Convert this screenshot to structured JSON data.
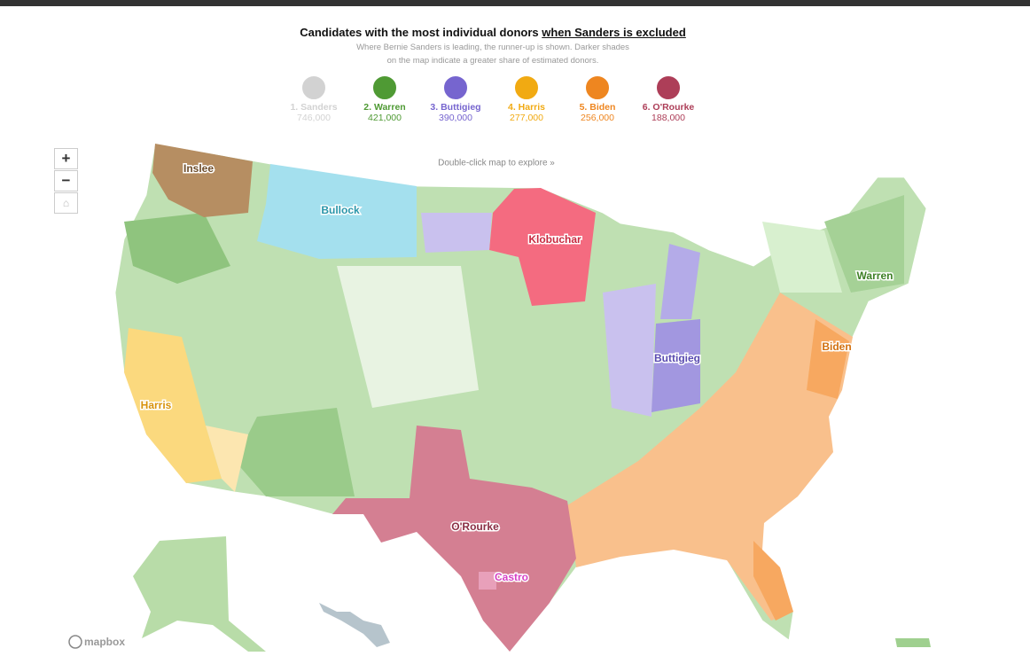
{
  "header": {
    "title_prefix": "Candidates with the most individual donors ",
    "title_link": "when Sanders is excluded",
    "subtitle_line1": "Where Bernie Sanders is leading, the runner-up is shown. Darker shades",
    "subtitle_line2": "on the map indicate a greater share of estimated donors."
  },
  "candidates": [
    {
      "label": "1. Sanders",
      "donors": "746,000",
      "color": "#c4c4c4"
    },
    {
      "label": "2. Warren",
      "donors": "421,000",
      "color": "#4f9a34"
    },
    {
      "label": "3. Buttigieg",
      "donors": "390,000",
      "color": "#7665cf"
    },
    {
      "label": "4. Harris",
      "donors": "277,000",
      "color": "#f1aa12"
    },
    {
      "label": "5. Biden",
      "donors": "256,000",
      "color": "#ee8620"
    },
    {
      "label": "6. O'Rourke",
      "donors": "188,000",
      "color": "#ad3e58"
    }
  ],
  "controls": {
    "zoom_in": "+",
    "zoom_out": "−"
  },
  "map": {
    "hint": "Double-click map to explore »",
    "labels": [
      "Inslee",
      "Bullock",
      "Klobuchar",
      "Warren",
      "Biden",
      "Buttigieg",
      "Harris",
      "O'Rourke",
      "Castro"
    ],
    "attribution": "mapbox"
  }
}
